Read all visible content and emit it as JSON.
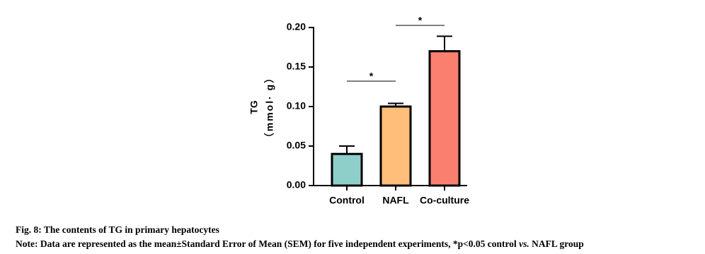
{
  "chart_data": {
    "type": "bar",
    "y_label": [
      "TG",
      "（mmol· g）"
    ],
    "categories": [
      "Control",
      "NAFL",
      "Co-culture"
    ],
    "values": [
      0.04,
      0.1,
      0.17
    ],
    "errors": [
      0.01,
      0.004,
      0.019
    ],
    "colors": [
      "#8ecfc9",
      "#ffbe7a",
      "#fa7f6f"
    ],
    "ylim": [
      0,
      0.2
    ],
    "yticks": [
      {
        "value": 0,
        "label": "0.00"
      },
      0.05,
      {
        "value": 0.1,
        "label": "0.10"
      },
      0.15,
      {
        "value": 0.2,
        "label": "0.20"
      }
    ],
    "annotations": [
      "*",
      "*"
    ]
  },
  "caption": {
    "figure": "Fig. 8: The contents of TG in primary hepatocytes",
    "note": [
      "Note: Data are represented as the mean±Standard Error of Mean (SEM) for five independent experiments, *p<0.05 control ",
      "vs.",
      " NAFL group"
    ]
  }
}
